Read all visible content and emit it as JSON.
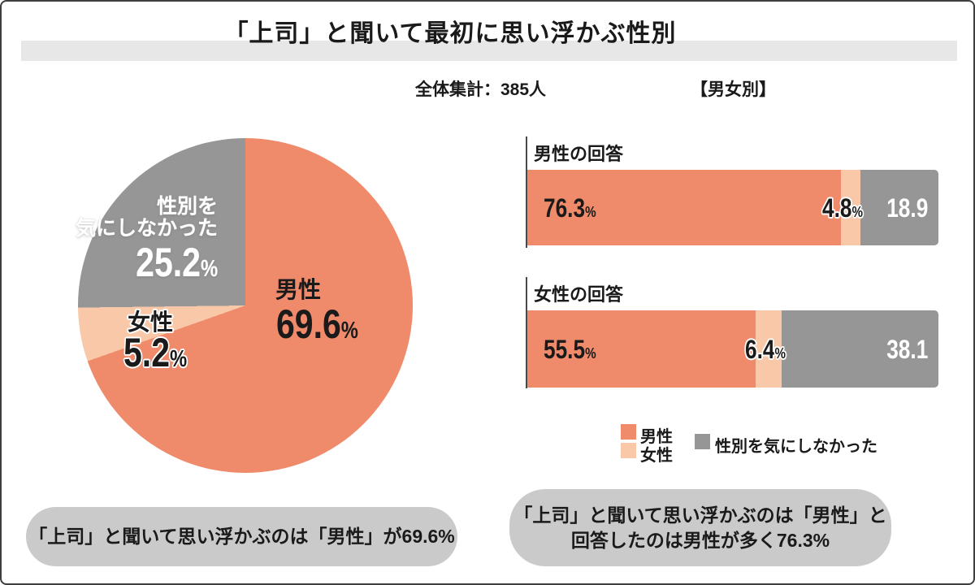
{
  "title": "「上司」と聞いて最初に思い浮かぶ性別",
  "subtitle": {
    "total": "全体集計：385人",
    "by_gender": "【男女別】"
  },
  "colors": {
    "male": "#EF8A6B",
    "female": "#F8C8A8",
    "neutral": "#969696",
    "callout_bg": "#CACACA",
    "title_band": "#E7E7E7",
    "axis_line": "#4A4A4A"
  },
  "chart_data": [
    {
      "type": "pie",
      "title": "全体集計：385人",
      "start_angle": "12-o-clock clockwise",
      "slices": [
        {
          "label": "男性",
          "value": 69.6,
          "color": "#EF8A6B"
        },
        {
          "label": "女性",
          "value": 5.2,
          "color": "#F8C8A8"
        },
        {
          "label": "性別を気にしなかった",
          "value": 25.2,
          "color": "#969696"
        }
      ]
    },
    {
      "type": "bar",
      "orientation": "horizontal-stacked",
      "title": "【男女別】",
      "xlim": [
        0,
        100
      ],
      "legend_position": "below",
      "categories": [
        "男性の回答",
        "女性の回答"
      ],
      "series": [
        {
          "name": "男性",
          "color": "#EF8A6B",
          "values": [
            76.3,
            55.5
          ]
        },
        {
          "name": "女性",
          "color": "#F8C8A8",
          "values": [
            4.8,
            6.4
          ]
        },
        {
          "name": "性別を気にしなかった",
          "color": "#969696",
          "values": [
            18.9,
            38.1
          ]
        }
      ]
    }
  ],
  "pie_labels": {
    "male_name": "男性",
    "male_value": "69.6",
    "female_name": "女性",
    "female_value": "5.2",
    "neutral_line1": "性別を",
    "neutral_line2": "気にしなかった",
    "neutral_value": "25.2",
    "pct": "%"
  },
  "bar_labels": {
    "group1": {
      "category": "男性の回答",
      "male": "76.3",
      "female": "4.8",
      "neutral": "18.9"
    },
    "group2": {
      "category": "女性の回答",
      "male": "55.5",
      "female": "6.4",
      "neutral": "38.1"
    },
    "pct": "%"
  },
  "legend": {
    "male": "男性",
    "female": "女性",
    "neutral": "性別を気にしなかった"
  },
  "callouts": {
    "left": "「上司」と聞いて思い浮かぶのは「男性」が69.6%",
    "right_line1": "「上司」と聞いて思い浮かぶのは「男性」と",
    "right_line2": "回答したのは男性が多く76.3%"
  }
}
